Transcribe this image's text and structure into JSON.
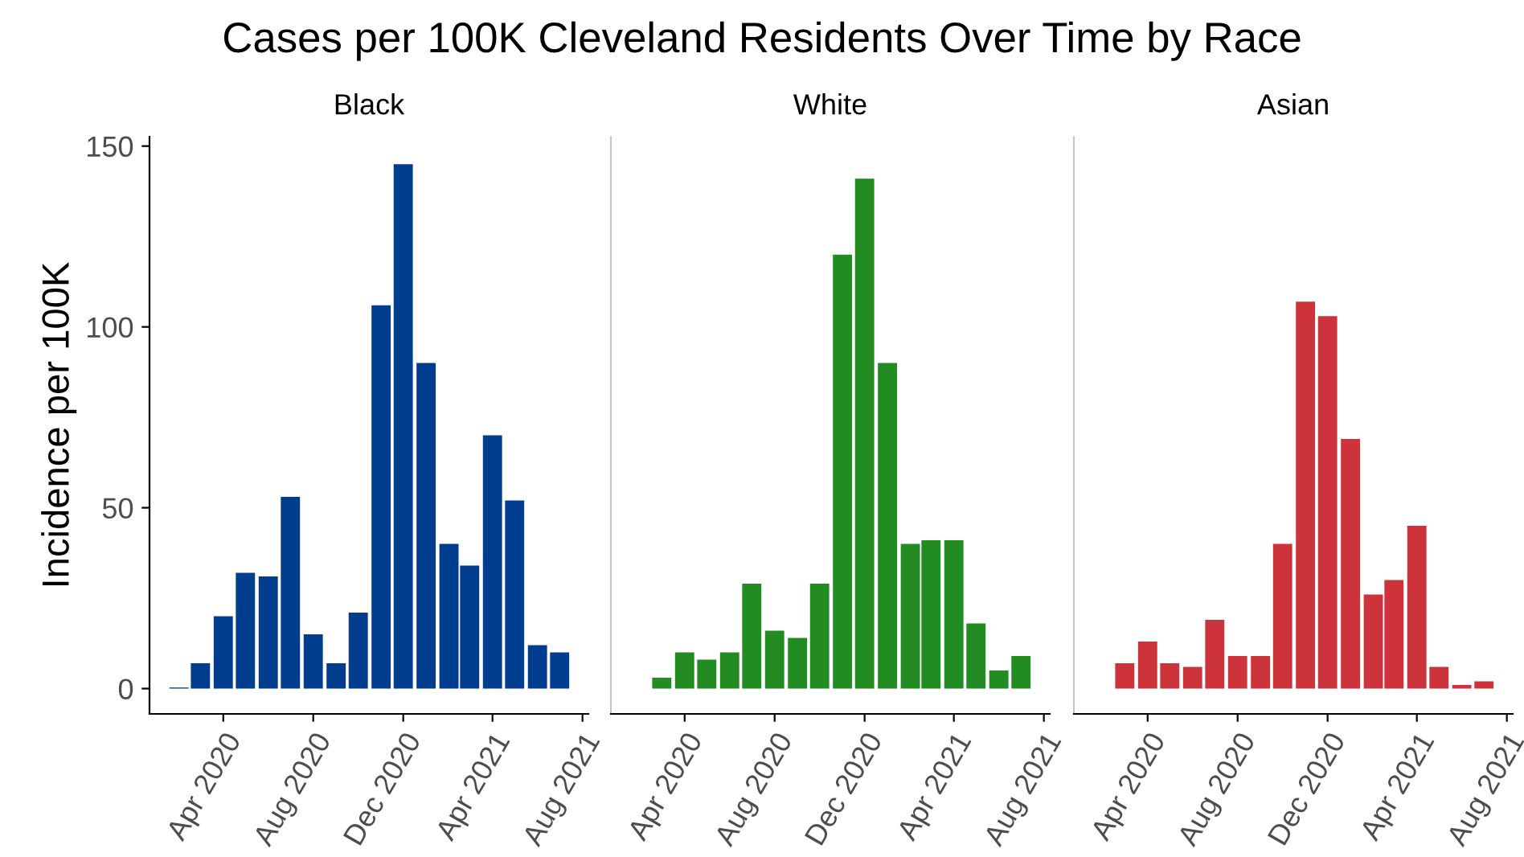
{
  "chart_data": [
    {
      "type": "bar",
      "title": "Cases per 100K Cleveland Residents Over Time by Race",
      "subtitle": "Black",
      "ylabel": "Incidence per 100K",
      "x": [
        "2020-02",
        "2020-03",
        "2020-04",
        "2020-05",
        "2020-06",
        "2020-07",
        "2020-08",
        "2020-09",
        "2020-10",
        "2020-11",
        "2020-12",
        "2021-01",
        "2021-02",
        "2021-03",
        "2021-04",
        "2021-05",
        "2021-06",
        "2021-07"
      ],
      "values": [
        0.3,
        7,
        20,
        32,
        31,
        53,
        15,
        7,
        21,
        106,
        145,
        90,
        40,
        34,
        70,
        52,
        12,
        10
      ],
      "color": "#003d8f",
      "xlim": [
        "2019-12-23",
        "2021-08-09"
      ],
      "ylim": [
        -7,
        152.6
      ],
      "yticks": [
        0,
        50,
        100,
        150
      ],
      "xticks": [
        {
          "value": "2020-04",
          "label": "Apr 2020"
        },
        {
          "value": "2020-08",
          "label": "Aug 2020"
        },
        {
          "value": "2020-12",
          "label": "Dec 2020"
        },
        {
          "value": "2021-04",
          "label": "Apr 2021"
        },
        {
          "value": "2021-08",
          "label": "Aug 2021"
        }
      ],
      "grid": false
    },
    {
      "type": "bar",
      "subtitle": "White",
      "x": [
        "2020-03",
        "2020-04",
        "2020-05",
        "2020-06",
        "2020-07",
        "2020-08",
        "2020-09",
        "2020-10",
        "2020-11",
        "2020-12",
        "2021-01",
        "2021-02",
        "2021-03",
        "2021-04",
        "2021-05",
        "2021-06",
        "2021-07"
      ],
      "values": [
        3,
        10,
        8,
        10,
        29,
        16,
        14,
        29,
        120,
        141,
        90,
        40,
        41,
        41,
        18,
        5,
        9
      ],
      "color": "#228b22",
      "xlim": [
        "2019-12-23",
        "2021-08-09"
      ],
      "ylim": [
        -7,
        152.6
      ],
      "tick_labels": "x",
      "xticks": [
        {
          "value": "2020-04",
          "label": "Apr 2020"
        },
        {
          "value": "2020-08",
          "label": "Aug 2020"
        },
        {
          "value": "2020-12",
          "label": "Dec 2020"
        },
        {
          "value": "2021-04",
          "label": "Apr 2021"
        },
        {
          "value": "2021-08",
          "label": "Aug 2021"
        }
      ],
      "grid": false
    },
    {
      "type": "bar",
      "subtitle": "Asian",
      "x": [
        "2020-03",
        "2020-04",
        "2020-05",
        "2020-06",
        "2020-07",
        "2020-08",
        "2020-09",
        "2020-10",
        "2020-11",
        "2020-12",
        "2021-01",
        "2021-02",
        "2021-03",
        "2021-04",
        "2021-05",
        "2021-06",
        "2021-07"
      ],
      "values": [
        7,
        13,
        7,
        6,
        19,
        9,
        9,
        40,
        107,
        103,
        69,
        26,
        30,
        45,
        6,
        1,
        2
      ],
      "color": "#cc333b",
      "xlim": [
        "2019-12-23",
        "2021-08-09"
      ],
      "ylim": [
        -7,
        152.6
      ],
      "tick_labels": "x",
      "xticks": [
        {
          "value": "2020-04",
          "label": "Apr 2020"
        },
        {
          "value": "2020-08",
          "label": "Aug 2020"
        },
        {
          "value": "2020-12",
          "label": "Dec 2020"
        },
        {
          "value": "2021-04",
          "label": "Apr 2021"
        },
        {
          "value": "2021-08",
          "label": "Aug 2021"
        }
      ],
      "grid": false
    }
  ]
}
